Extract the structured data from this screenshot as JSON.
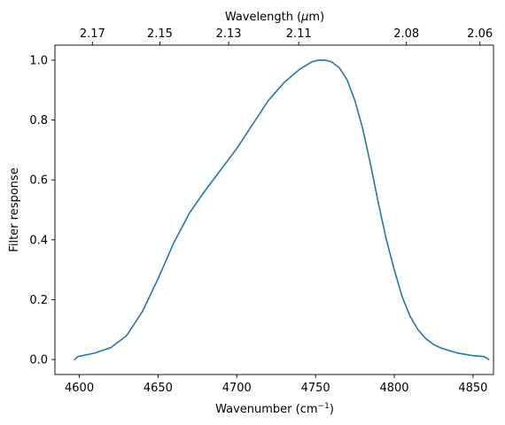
{
  "chart_data": {
    "type": "line",
    "xlabel": "Wavenumber (cm",
    "xlabel_superscript": "−1",
    "xlabel_suffix": ")",
    "ylabel": "Filter response",
    "top_xlabel": "Wavelength (",
    "top_xlabel_mu": "μ",
    "top_xlabel_suffix": "m)",
    "xlim": [
      4584.5,
      4863
    ],
    "ylim": [
      -0.05,
      1.05
    ],
    "grid": false,
    "legend": "none",
    "x_ticks": [
      4600,
      4650,
      4700,
      4750,
      4800,
      4850
    ],
    "x_tick_labels": [
      "4600",
      "4650",
      "4700",
      "4750",
      "4800",
      "4850"
    ],
    "y_ticks": [
      0.0,
      0.2,
      0.4,
      0.6,
      0.8,
      1.0
    ],
    "y_tick_labels": [
      "0.0",
      "0.2",
      "0.4",
      "0.6",
      "0.8",
      "1.0"
    ],
    "top_x_ticks_wavelength": [
      2.17,
      2.15,
      2.13,
      2.11,
      2.08,
      2.06
    ],
    "top_x_tick_labels": [
      "2.17",
      "2.15",
      "2.13",
      "2.11",
      "2.08",
      "2.06"
    ],
    "series": [
      {
        "color": "#1f77b4",
        "x": [
          4597,
          4599,
          4602,
          4610,
          4620,
          4630,
          4640,
          4650,
          4660,
          4670,
          4680,
          4690,
          4700,
          4710,
          4720,
          4730,
          4740,
          4748,
          4752,
          4756,
          4760,
          4765,
          4770,
          4775,
          4780,
          4785,
          4790,
          4795,
          4800,
          4805,
          4810,
          4815,
          4820,
          4825,
          4830,
          4840,
          4850,
          4857,
          4860
        ],
        "values": [
          0.0,
          0.01,
          0.013,
          0.022,
          0.04,
          0.08,
          0.16,
          0.27,
          0.39,
          0.49,
          0.565,
          0.635,
          0.705,
          0.785,
          0.865,
          0.925,
          0.97,
          0.995,
          1.0,
          1.0,
          0.995,
          0.975,
          0.935,
          0.865,
          0.77,
          0.65,
          0.52,
          0.4,
          0.3,
          0.21,
          0.145,
          0.1,
          0.07,
          0.05,
          0.038,
          0.022,
          0.013,
          0.01,
          0.0
        ]
      }
    ]
  }
}
